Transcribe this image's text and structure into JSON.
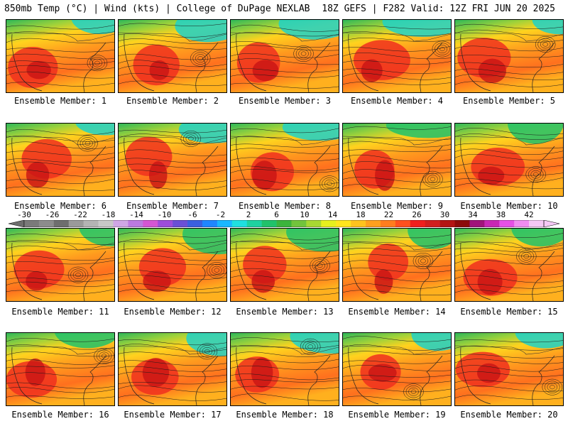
{
  "header": {
    "left": "850mb Temp (°C) | Wind (kts) | College of DuPage NEXLAB",
    "right": "18Z GEFS | F282 Valid: 12Z FRI JUN 20 2025"
  },
  "panels": [
    {
      "label": "Ensemble Member: 1"
    },
    {
      "label": "Ensemble Member: 2"
    },
    {
      "label": "Ensemble Member: 3"
    },
    {
      "label": "Ensemble Member: 4"
    },
    {
      "label": "Ensemble Member: 5"
    },
    {
      "label": "Ensemble Member: 6"
    },
    {
      "label": "Ensemble Member: 7"
    },
    {
      "label": "Ensemble Member: 8"
    },
    {
      "label": "Ensemble Member: 9"
    },
    {
      "label": "Ensemble Member: 10"
    },
    {
      "label": "Ensemble Member: 11"
    },
    {
      "label": "Ensemble Member: 12"
    },
    {
      "label": "Ensemble Member: 13"
    },
    {
      "label": "Ensemble Member: 14"
    },
    {
      "label": "Ensemble Member: 15"
    },
    {
      "label": "Ensemble Member: 16"
    },
    {
      "label": "Ensemble Member: 17"
    },
    {
      "label": "Ensemble Member: 18"
    },
    {
      "label": "Ensemble Member: 19"
    },
    {
      "label": "Ensemble Member: 20"
    }
  ],
  "colorbar": {
    "ticks": [
      "-30",
      "-26",
      "-22",
      "-18",
      "-14",
      "-10",
      "-6",
      "-2",
      "2",
      "6",
      "10",
      "14",
      "18",
      "22",
      "26",
      "30",
      "34",
      "38",
      "42"
    ],
    "colors": [
      "#7a7a7a",
      "#8c8c8c",
      "#6e6e6e",
      "#9a9a9a",
      "#b4b4b4",
      "#c8c8c8",
      "#cfa6e6",
      "#bb7ae0",
      "#d456d4",
      "#9d4ddb",
      "#6a4fd6",
      "#3a5fe0",
      "#1f86ff",
      "#19b7ff",
      "#1fe0e0",
      "#1ed2a0",
      "#21c26a",
      "#3cb43c",
      "#72c43c",
      "#a8d832",
      "#e6f01e",
      "#ffe61e",
      "#ffc31e",
      "#ffa01e",
      "#ff7d1e",
      "#ff501e",
      "#f01e1e",
      "#d21e1e",
      "#b41414",
      "#8c0a0a",
      "#a0147a",
      "#c828b4",
      "#e650e6",
      "#f08cf0",
      "#f5c8f5"
    ]
  }
}
